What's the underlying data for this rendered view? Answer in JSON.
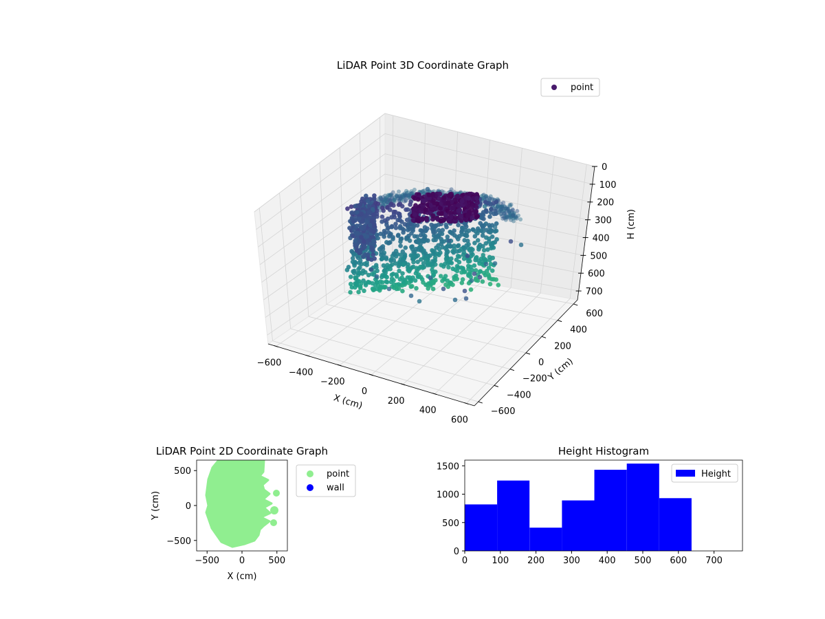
{
  "chart_data": [
    {
      "type": "scatter",
      "title": "LiDAR Point 3D Coordinate Graph",
      "xlabel": "X (cm)",
      "ylabel": "Y (cm)",
      "zlabel": "H (cm)",
      "xlim": [
        -650,
        650
      ],
      "ylim": [
        -650,
        650
      ],
      "zlim": [
        750,
        0
      ],
      "xticks": [
        -600,
        -400,
        -200,
        0,
        200,
        400,
        600
      ],
      "yticks": [
        -600,
        -400,
        -200,
        0,
        200,
        400,
        600
      ],
      "zticks": [
        0,
        100,
        200,
        300,
        400,
        500,
        600,
        700
      ],
      "colormap": "viridis",
      "legend": {
        "entries": [
          {
            "label": "point",
            "color": "#481a6c"
          }
        ],
        "position": "upper right"
      },
      "grid": true
    },
    {
      "type": "scatter",
      "title": "LiDAR Point 2D Coordinate Graph",
      "xlabel": "X (cm)",
      "ylabel": "Y (cm)",
      "xlim": [
        -650,
        650
      ],
      "ylim": [
        -650,
        650
      ],
      "xticks": [
        -500,
        0,
        500
      ],
      "yticks": [
        -500,
        0,
        500
      ],
      "series": [
        {
          "name": "point",
          "color": "#90ee90"
        },
        {
          "name": "wall",
          "color": "#0000ff",
          "values": []
        }
      ],
      "legend_position": "outside upper right"
    },
    {
      "type": "bar",
      "title": "Height Histogram",
      "xlim": [
        0,
        780
      ],
      "ylim": [
        0,
        1600
      ],
      "xticks": [
        0,
        100,
        200,
        300,
        400,
        500,
        600,
        700
      ],
      "yticks": [
        0,
        500,
        1000,
        1500
      ],
      "bin_edges": [
        0,
        91,
        182,
        273,
        364,
        455,
        546,
        637
      ],
      "values": [
        820,
        1240,
        410,
        890,
        1430,
        1540,
        930
      ],
      "series_name": "Height",
      "color": "#0000ff",
      "legend_position": "upper right"
    }
  ]
}
